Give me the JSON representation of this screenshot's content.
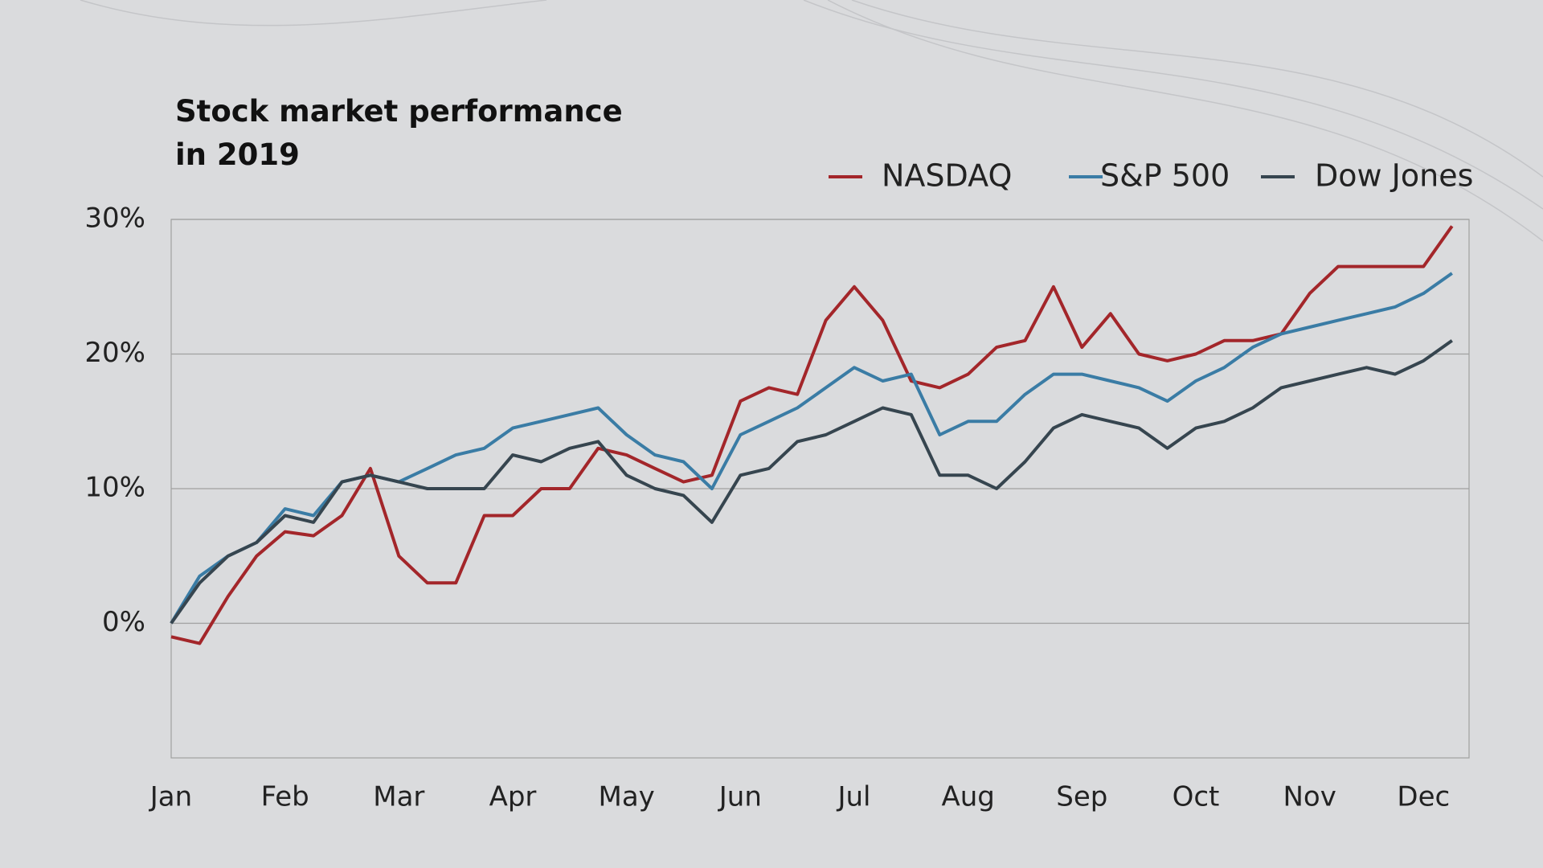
{
  "chart_data": {
    "type": "line",
    "title": "Stock market performance in 2019",
    "categories": [
      "Jan",
      null,
      null,
      null,
      "Feb",
      null,
      null,
      null,
      "Mar",
      null,
      null,
      null,
      "Apr",
      null,
      null,
      null,
      "May",
      null,
      null,
      null,
      "Jun",
      null,
      null,
      null,
      "Jul",
      null,
      null,
      null,
      "Aug",
      null,
      null,
      null,
      "Sep",
      null,
      null,
      null,
      "Oct",
      null,
      null,
      null,
      "Nov",
      null,
      null,
      null,
      "Dec",
      null
    ],
    "series": [
      {
        "name": "NASDAQ",
        "color": "#a3262a",
        "values": [
          -1,
          -1.5,
          2,
          5,
          6.8,
          6.5,
          8,
          11.5,
          5,
          3,
          3,
          8,
          8,
          10,
          10,
          13,
          12.5,
          11.5,
          10.5,
          11,
          16.5,
          17.5,
          17,
          22.5,
          25,
          22.5,
          18,
          17.5,
          18.5,
          20.5,
          21,
          25,
          20.5,
          23,
          20,
          19.5,
          20,
          21,
          21,
          21.5,
          24.5,
          26.5,
          26.5,
          26.5,
          26.5,
          29.5
        ]
      },
      {
        "name": "S&P 500",
        "color": "#3a7ca5",
        "values": [
          0,
          3.5,
          5,
          6,
          8.5,
          8,
          10.5,
          11,
          10.5,
          11.5,
          12.5,
          13,
          14.5,
          15,
          15.5,
          16,
          14,
          12.5,
          12,
          10,
          14,
          15,
          16,
          17.5,
          19,
          18,
          18.5,
          14,
          15,
          15,
          17,
          18.5,
          18.5,
          18,
          17.5,
          16.5,
          18,
          19,
          20.5,
          21.5,
          22,
          22.5,
          23,
          23.5,
          24.5,
          26
        ]
      },
      {
        "name": "Dow Jones",
        "color": "#36454f",
        "values": [
          0,
          3,
          5,
          6,
          8,
          7.5,
          10.5,
          11,
          10.5,
          10,
          10,
          10,
          12.5,
          12,
          13,
          13.5,
          11,
          10,
          9.5,
          7.5,
          11,
          11.5,
          13.5,
          14,
          15,
          16,
          15.5,
          11,
          11,
          10,
          12,
          14.5,
          15.5,
          15,
          14.5,
          13,
          14.5,
          15,
          16,
          17.5,
          18,
          18.5,
          19,
          18.5,
          19.5,
          21
        ]
      }
    ],
    "ylim": [
      -10,
      30
    ],
    "yticks": [
      {
        "value": 0,
        "label": "0%"
      },
      {
        "value": 10,
        "label": "10%"
      },
      {
        "value": 20,
        "label": "20%"
      },
      {
        "value": 30,
        "label": "30%"
      }
    ],
    "grid": true,
    "legend": "top-right"
  }
}
